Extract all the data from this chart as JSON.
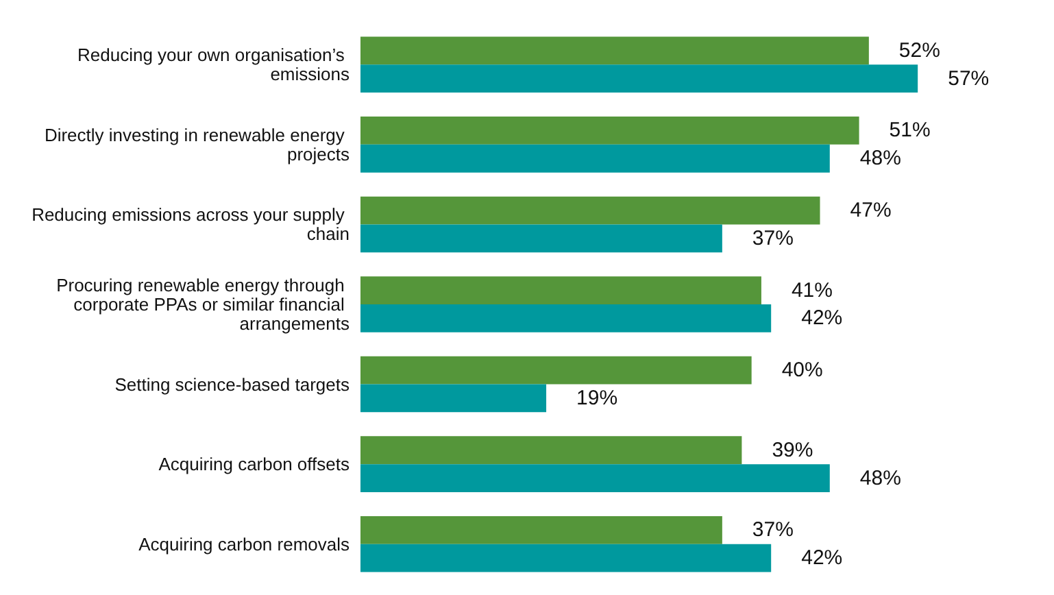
{
  "chart_data": {
    "type": "bar",
    "orientation": "horizontal",
    "categories": [
      "Reducing your own organisation’s emissions",
      "Directly investing in renewable energy projects",
      "Reducing emissions across your supply chain",
      "Procuring renewable energy through corporate PPAs or similar financial arrangements",
      "Setting science-based targets",
      "Acquiring carbon offsets",
      "Acquiring carbon removals"
    ],
    "series": [
      {
        "color": "#55963a",
        "values": [
          52,
          51,
          47,
          41,
          40,
          39,
          37
        ],
        "value_labels": [
          "52%",
          "51%",
          "47%",
          "41%",
          "40%",
          "39%",
          "37%"
        ]
      },
      {
        "color": "#00999e",
        "values": [
          57,
          48,
          37,
          42,
          19,
          48,
          42
        ],
        "value_labels": [
          "57%",
          "48%",
          "37%",
          "42%",
          "19%",
          "48%",
          "42%"
        ]
      }
    ],
    "grid": false
  }
}
